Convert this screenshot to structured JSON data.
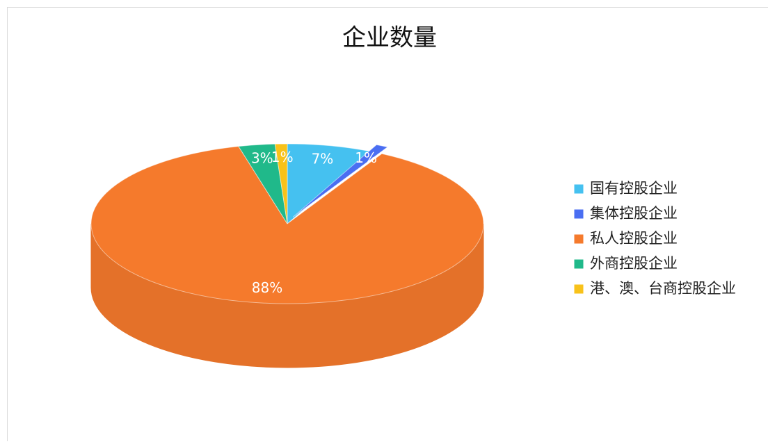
{
  "chart_data": {
    "type": "pie3d",
    "title": "企业数量",
    "categories": [
      "国有控股企业",
      "集体控股企业",
      "私人控股企业",
      "外商控股企业",
      "港、澳、台商控股企业"
    ],
    "values": [
      7,
      1,
      88,
      3,
      1
    ],
    "value_labels": [
      "7%",
      "1%",
      "88%",
      "3%",
      "1%"
    ],
    "colors": [
      "#45c1f0",
      "#4a6ef2",
      "#f57a2c",
      "#20b98a",
      "#f8c21a"
    ],
    "legend": "right"
  }
}
